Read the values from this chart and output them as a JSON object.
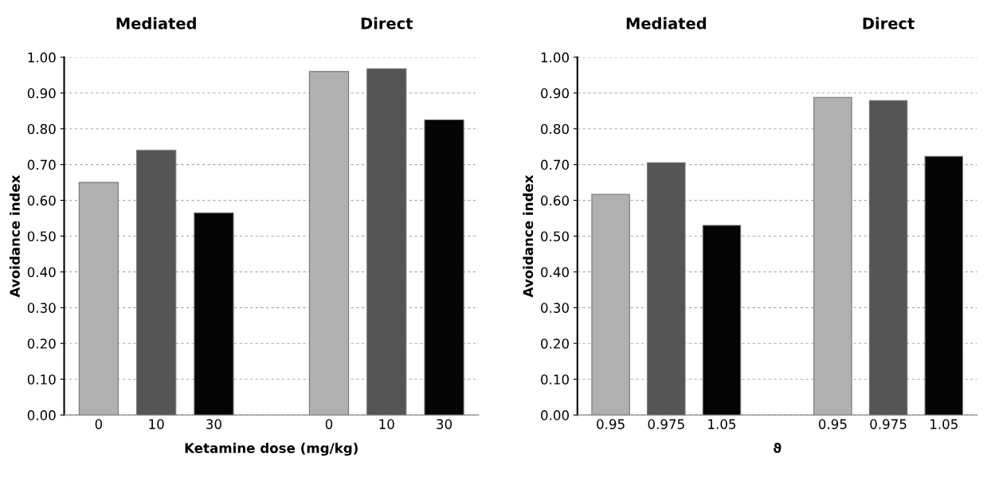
{
  "chart_data": [
    {
      "type": "bar",
      "xlabel": "Ketamine dose (mg/kg)",
      "ylabel": "Avoidance index",
      "annotations": [
        "Mediated",
        "Direct"
      ],
      "categories": [
        "0",
        "10",
        "30",
        null,
        "0",
        "10",
        "30"
      ],
      "values": [
        0.65,
        0.74,
        0.565,
        null,
        0.96,
        0.968,
        0.825
      ],
      "colors": [
        "#b0b0b0",
        "#555555",
        "#050505",
        "#ffffff",
        "#b0b0b0",
        "#555555",
        "#050505"
      ],
      "ylim": [
        0,
        1
      ],
      "yticks": [
        {
          "value": 0,
          "label": "0.00"
        },
        {
          "value": 0.1,
          "label": "0.10"
        },
        {
          "value": 0.2,
          "label": "0.20"
        },
        {
          "value": 0.3,
          "label": "0.30"
        },
        {
          "value": 0.4,
          "label": "0.40"
        },
        {
          "value": 0.5,
          "label": "0.50"
        },
        {
          "value": 0.6,
          "label": "0.60"
        },
        {
          "value": 0.7,
          "label": "0.70"
        },
        {
          "value": 0.8,
          "label": "0.80"
        },
        {
          "value": 0.9,
          "label": "0.90"
        },
        {
          "value": 1,
          "label": "1.00"
        }
      ],
      "grid": "y",
      "legend": false
    },
    {
      "type": "bar",
      "xlabel": "ϑ",
      "ylabel": "Avoidance index",
      "annotations": [
        "Mediated",
        "Direct"
      ],
      "categories": [
        "0.95",
        "0.975",
        "1.05",
        null,
        "0.95",
        "0.975",
        "1.05"
      ],
      "values": [
        0.617,
        0.705,
        0.53,
        null,
        0.888,
        0.879,
        0.723
      ],
      "colors": [
        "#b0b0b0",
        "#555555",
        "#050505",
        "#ffffff",
        "#b0b0b0",
        "#555555",
        "#050505"
      ],
      "ylim": [
        0,
        1
      ],
      "yticks": [
        {
          "value": 0,
          "label": "0.00"
        },
        {
          "value": 0.1,
          "label": "0.10"
        },
        {
          "value": 0.2,
          "label": "0.20"
        },
        {
          "value": 0.3,
          "label": "0.30"
        },
        {
          "value": 0.4,
          "label": "0.40"
        },
        {
          "value": 0.5,
          "label": "0.50"
        },
        {
          "value": 0.6,
          "label": "0.60"
        },
        {
          "value": 0.7,
          "label": "0.70"
        },
        {
          "value": 0.8,
          "label": "0.80"
        },
        {
          "value": 0.9,
          "label": "0.90"
        },
        {
          "value": 1,
          "label": "1.00"
        }
      ],
      "grid": "y",
      "legend": false
    }
  ]
}
